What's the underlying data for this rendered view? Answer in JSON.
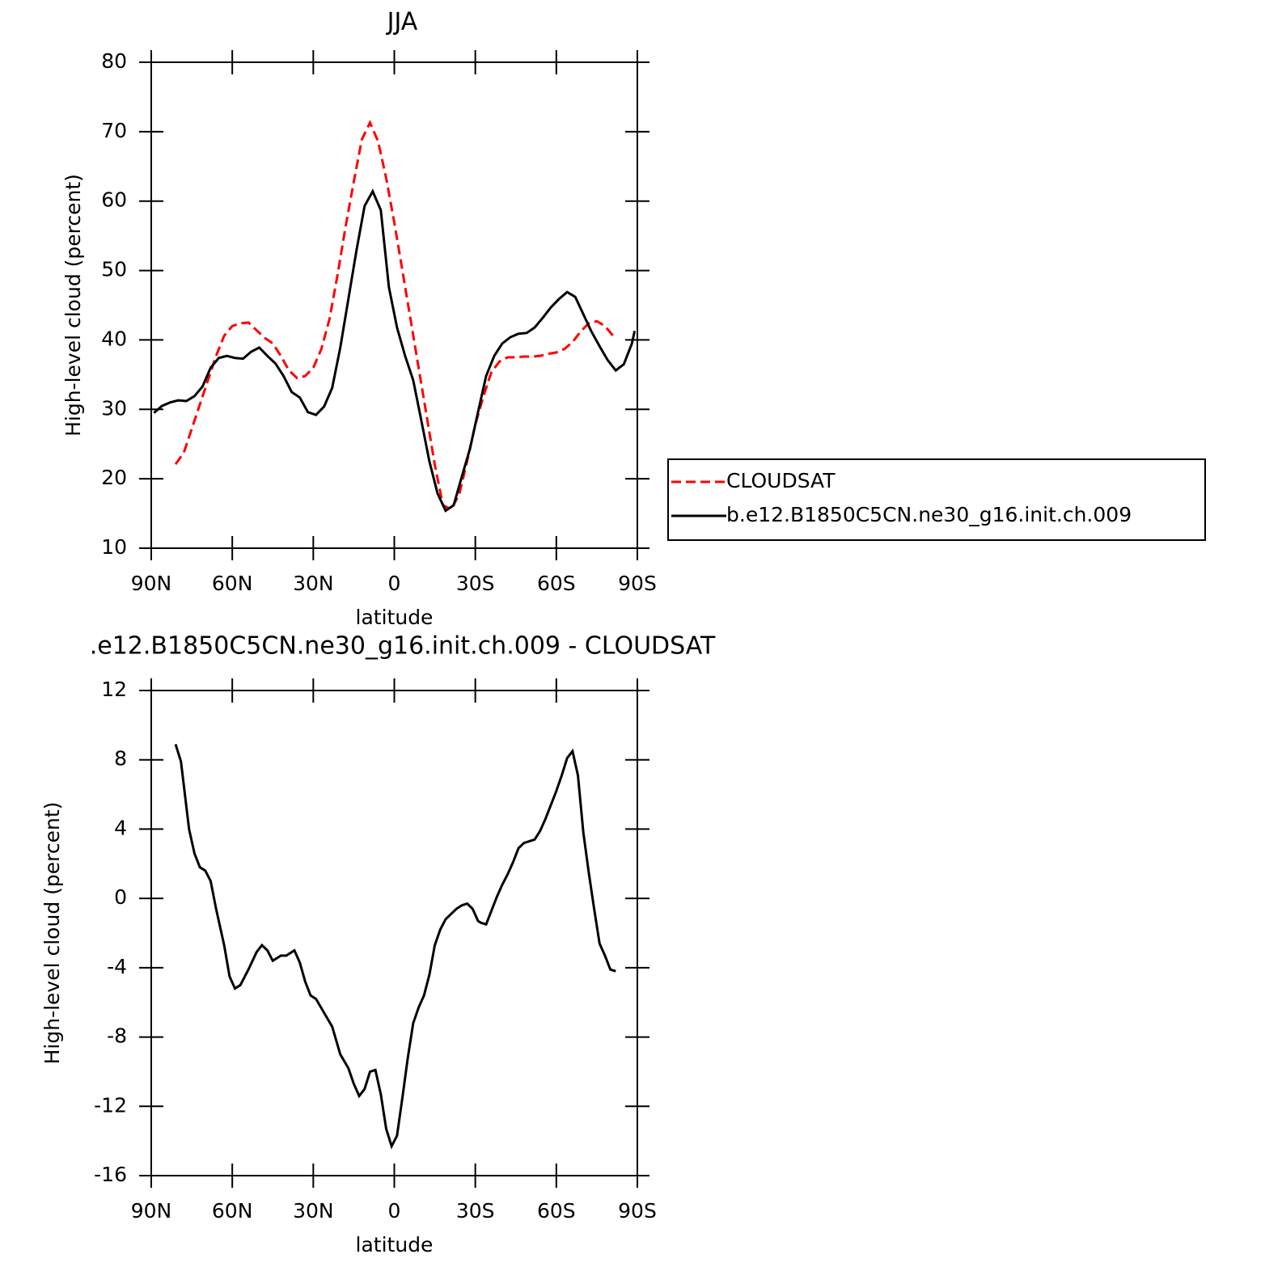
{
  "chart_data": [
    {
      "type": "line",
      "title": "JJA",
      "xlabel": "latitude",
      "ylabel": "High-level cloud (percent)",
      "xlim": [
        90,
        -90
      ],
      "xticks": [
        {
          "value": 90,
          "label": "90N"
        },
        {
          "value": 60,
          "label": "60N"
        },
        {
          "value": 30,
          "label": "30N"
        },
        0,
        {
          "value": -30,
          "label": "30S"
        },
        {
          "value": -60,
          "label": "60S"
        },
        {
          "value": -90,
          "label": "90S"
        }
      ],
      "ylim": [
        10,
        80
      ],
      "yticks": [
        10,
        20,
        30,
        40,
        50,
        60,
        70,
        80
      ],
      "legend": "right",
      "series": [
        {
          "name": "CLOUDSAT",
          "color": "#ff0000",
          "dash": true,
          "x": [
            81,
            78,
            75,
            72,
            69,
            66,
            63,
            60,
            57,
            54,
            51,
            48,
            45,
            42,
            39,
            36,
            33,
            30,
            27,
            24,
            21,
            18,
            15,
            12,
            9,
            6,
            3,
            0,
            -3,
            -6,
            -9,
            -12,
            -15,
            -18,
            -21,
            -24,
            -27,
            -30,
            -33,
            -36,
            -39,
            -42,
            -45,
            -48,
            -51,
            -54,
            -57,
            -60,
            -63,
            -66,
            -69,
            -72,
            -75,
            -78,
            -81
          ],
          "values": [
            22.1,
            23.7,
            27.2,
            30.7,
            34.2,
            37.7,
            40.6,
            42.0,
            42.4,
            42.5,
            41.4,
            40.3,
            39.5,
            37.7,
            35.6,
            34.5,
            34.8,
            36.0,
            38.7,
            43.0,
            49.4,
            56.4,
            62.8,
            68.9,
            71.3,
            68.6,
            63.3,
            56.9,
            50.0,
            43.0,
            36.0,
            29.0,
            22.0,
            16.2,
            15.6,
            17.7,
            22.6,
            27.8,
            31.9,
            35.4,
            36.9,
            37.5,
            37.5,
            37.6,
            37.6,
            37.7,
            38.0,
            38.2,
            38.7,
            39.7,
            41.2,
            42.4,
            42.7,
            42.0,
            40.6
          ]
        },
        {
          "name": "b.e12.B1850C5CN.ne30_g16.init.ch.009",
          "color": "#000000",
          "dash": false,
          "x": [
            89,
            86,
            83,
            80,
            77,
            74,
            71,
            68,
            65,
            62,
            59,
            56,
            53,
            50,
            47,
            44,
            41,
            38,
            35,
            32,
            29,
            26,
            23,
            20,
            17,
            14,
            11,
            8,
            5,
            2,
            -1,
            -4,
            -7,
            -10,
            -13,
            -16,
            -19,
            -22,
            -25,
            -28,
            -31,
            -34,
            -37,
            -40,
            -43,
            -46,
            -49,
            -52,
            -55,
            -58,
            -61,
            -64,
            -67,
            -70,
            -73,
            -76,
            -79,
            -82,
            -85,
            -88,
            -89
          ],
          "values": [
            29.5,
            30.5,
            31.0,
            31.3,
            31.2,
            31.9,
            33.3,
            36.0,
            37.4,
            37.7,
            37.4,
            37.3,
            38.3,
            38.9,
            37.7,
            36.6,
            34.8,
            32.5,
            31.7,
            29.6,
            29.2,
            30.4,
            33.1,
            38.9,
            45.9,
            52.9,
            59.3,
            61.4,
            58.7,
            47.6,
            41.8,
            37.7,
            34.2,
            28.4,
            22.5,
            17.9,
            15.4,
            16.2,
            20.3,
            24.3,
            29.6,
            34.8,
            37.7,
            39.5,
            40.4,
            40.9,
            41.0,
            41.8,
            43.2,
            44.7,
            45.9,
            46.9,
            46.2,
            43.7,
            41.2,
            39.1,
            37.1,
            35.6,
            36.5,
            39.5,
            41.3
          ]
        }
      ]
    },
    {
      "type": "line",
      "title": ".e12.B1850C5CN.ne30_g16.init.ch.009 - CLOUDSAT",
      "xlabel": "latitude",
      "ylabel": "High-level cloud (percent)",
      "xlim": [
        90,
        -90
      ],
      "xticks": [
        {
          "value": 90,
          "label": "90N"
        },
        {
          "value": 60,
          "label": "60N"
        },
        {
          "value": 30,
          "label": "30N"
        },
        0,
        {
          "value": -30,
          "label": "30S"
        },
        {
          "value": -60,
          "label": "60S"
        },
        {
          "value": -90,
          "label": "90S"
        }
      ],
      "ylim": [
        -16,
        12
      ],
      "yticks": [
        -16,
        -12,
        -8,
        -4,
        0,
        4,
        8,
        12
      ],
      "series": [
        {
          "color": "#000000",
          "dash": false,
          "x": [
            81,
            79,
            76,
            74,
            72,
            70,
            68,
            66,
            63,
            61,
            59,
            57,
            54,
            51,
            49,
            47,
            45,
            42,
            40,
            37,
            35,
            33,
            31,
            29,
            26,
            23,
            20,
            17,
            15,
            13,
            11,
            9,
            7,
            5,
            3,
            1,
            -1,
            -3,
            -5,
            -7,
            -9,
            -11,
            -13,
            -15,
            -17,
            -19,
            -21,
            -23,
            -25,
            -27,
            -29,
            -31,
            -32,
            -34,
            -36,
            -38,
            -40,
            -42,
            -44,
            -46,
            -48,
            -50,
            -52,
            -54,
            -56,
            -58,
            -60,
            -62,
            -64,
            -66,
            -68,
            -70,
            -72,
            -74,
            -76,
            -78,
            -80,
            -82
          ],
          "values": [
            8.9,
            7.9,
            4.0,
            2.6,
            1.8,
            1.6,
            1.0,
            -0.6,
            -2.7,
            -4.5,
            -5.2,
            -5.0,
            -4.1,
            -3.1,
            -2.7,
            -3.0,
            -3.6,
            -3.3,
            -3.3,
            -3.0,
            -3.7,
            -4.8,
            -5.6,
            -5.8,
            -6.6,
            -7.4,
            -9.0,
            -9.8,
            -10.7,
            -11.4,
            -11.0,
            -10.0,
            -9.9,
            -11.3,
            -13.3,
            -14.3,
            -13.7,
            -11.5,
            -9.2,
            -7.2,
            -6.3,
            -5.6,
            -4.4,
            -2.7,
            -1.8,
            -1.2,
            -0.9,
            -0.6,
            -0.4,
            -0.3,
            -0.6,
            -1.3,
            -1.4,
            -1.5,
            -0.7,
            0.1,
            0.8,
            1.4,
            2.1,
            2.9,
            3.2,
            3.3,
            3.4,
            3.9,
            4.6,
            5.4,
            6.2,
            7.1,
            8.1,
            8.5,
            7.1,
            3.8,
            1.5,
            -0.6,
            -2.6,
            -3.3,
            -4.1,
            -4.2
          ]
        }
      ]
    }
  ]
}
